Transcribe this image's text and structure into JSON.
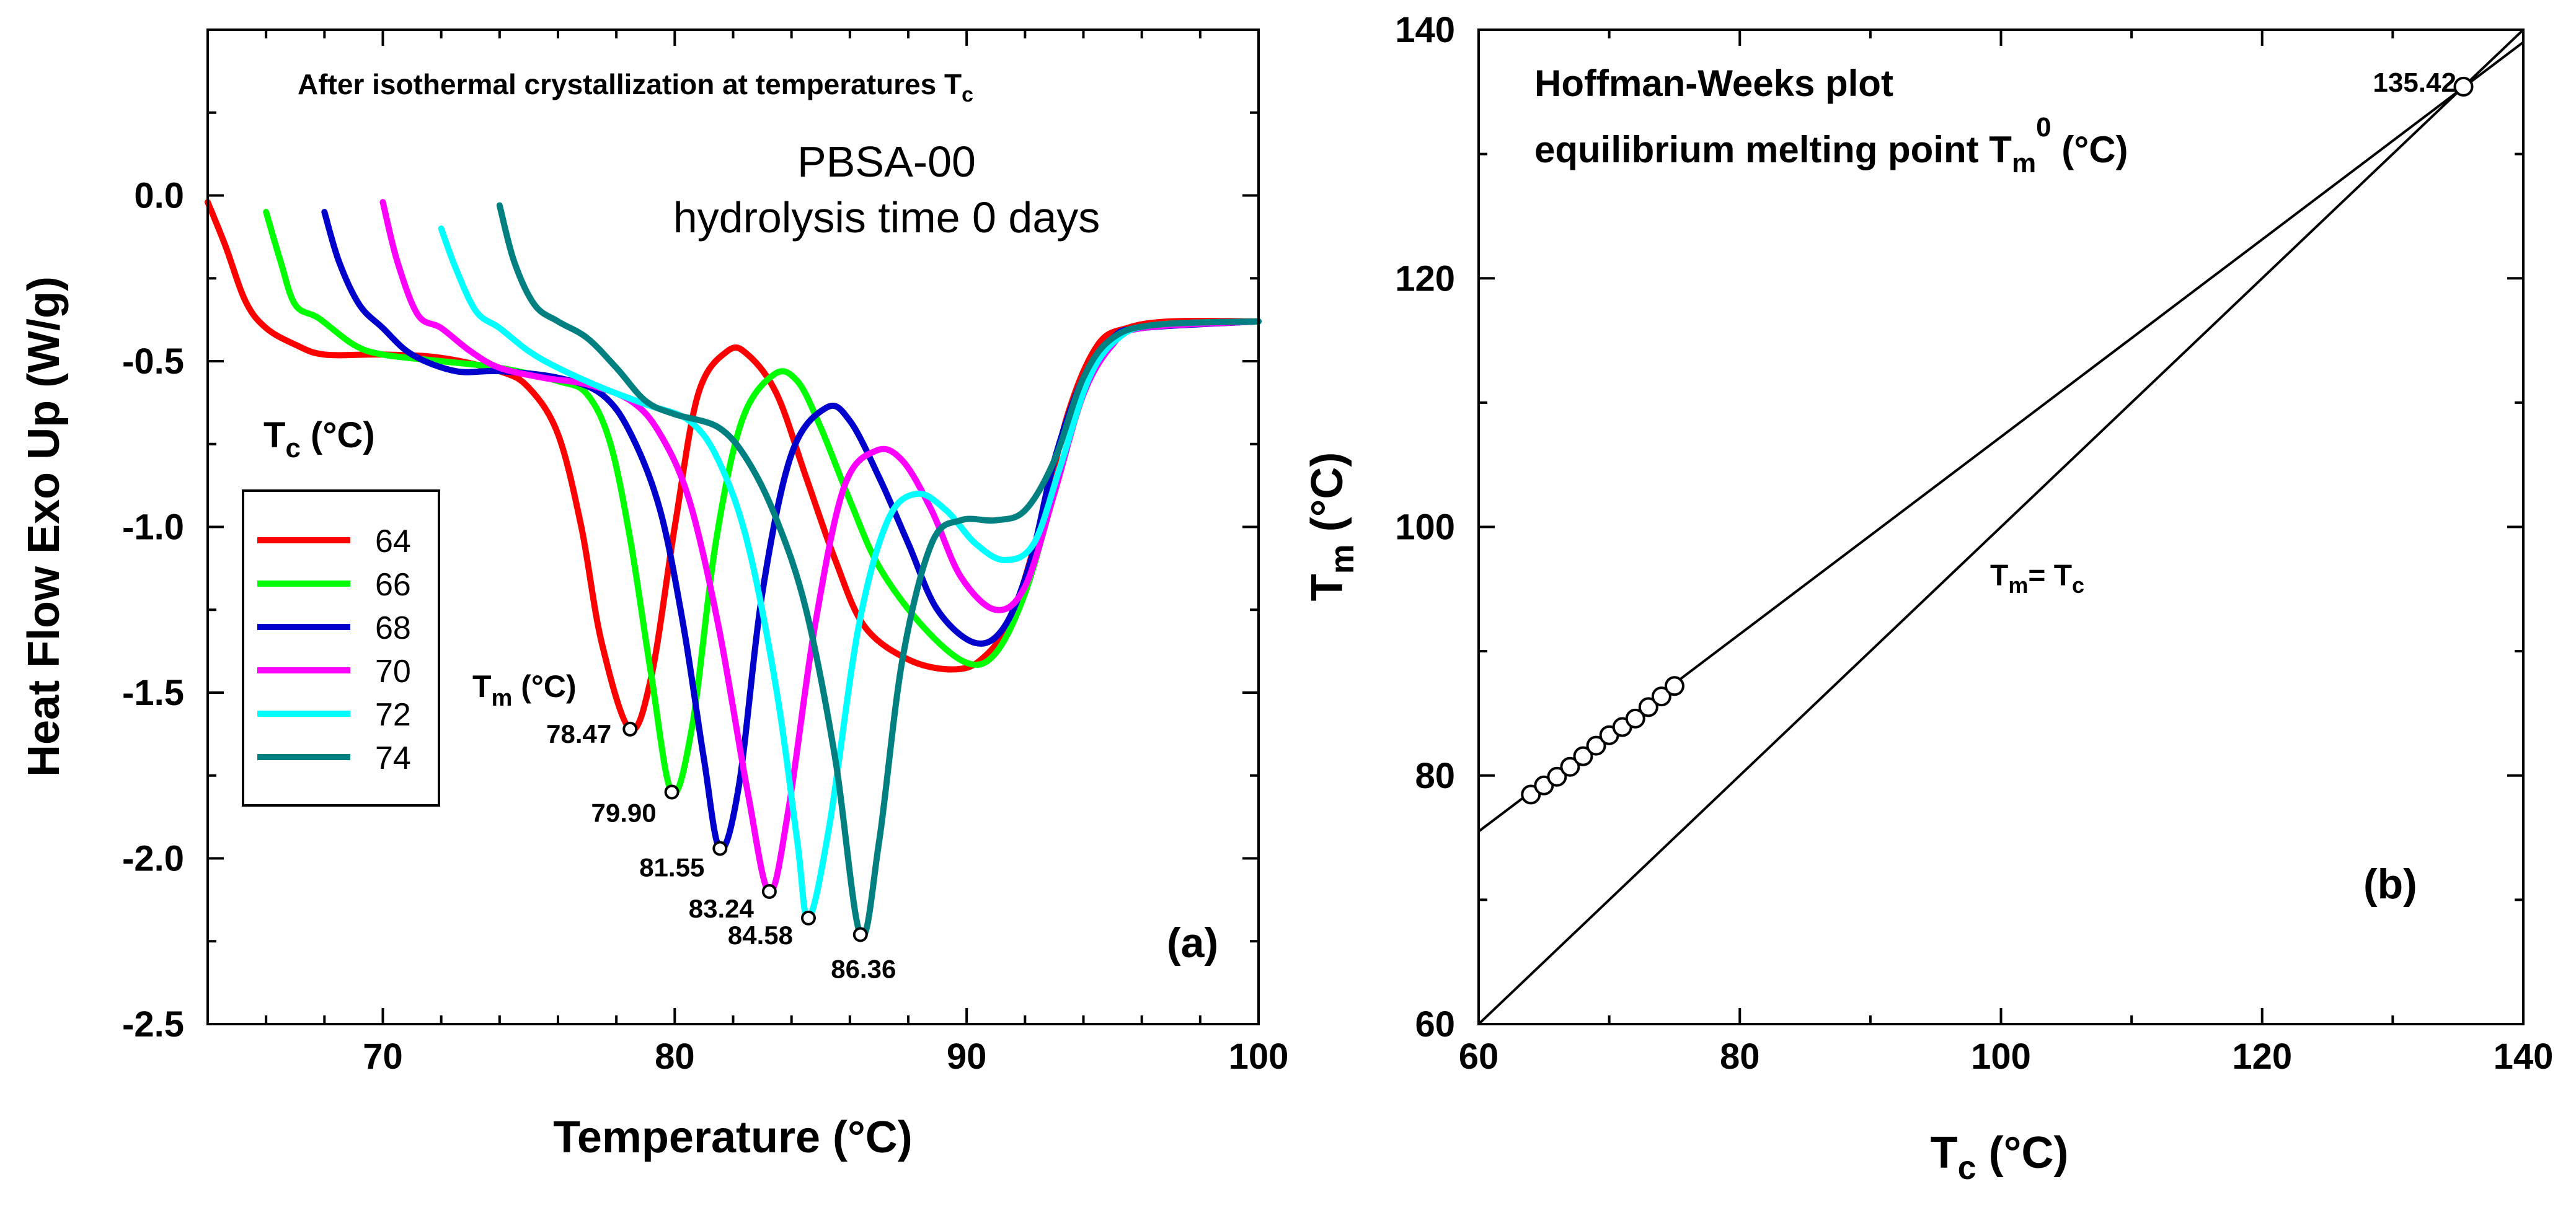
{
  "chart_data": [
    {
      "type": "line",
      "panel_label": "(a)",
      "header": "After isothermal crystallization at temperatures T",
      "header_sub": "c",
      "sample": "PBSA-00",
      "sample_note": "hydrolysis time 0 days",
      "xlabel": "Temperature (°C)",
      "ylabel": "Heat Flow Exo Up (W/g)",
      "xlim": [
        64,
        100
      ],
      "ylim": [
        -2.5,
        0.5
      ],
      "xticks": [
        70,
        80,
        90,
        100
      ],
      "yticks": [
        0.0,
        -0.5,
        -1.0,
        -1.5,
        -2.0,
        -2.5
      ],
      "ytick_labels": [
        "0.0",
        "-0.5",
        "-1.0",
        "-1.5",
        "-2.0",
        "-2.5"
      ],
      "legend_title": "T",
      "legend_title_sub": "c",
      "legend_title_unit": " (°C)",
      "legend_position": "left",
      "tm_label": "T",
      "tm_label_sub": "m",
      "tm_label_unit": " (°C)",
      "series": [
        {
          "name": "64",
          "color": "#ff0000",
          "tc": 64,
          "peak_label": "78.47",
          "points": [
            [
              64,
              -0.02
            ],
            [
              64.6,
              -0.15
            ],
            [
              65.3,
              -0.32
            ],
            [
              66,
              -0.4
            ],
            [
              67,
              -0.45
            ],
            [
              68,
              -0.48
            ],
            [
              70,
              -0.48
            ],
            [
              72,
              -0.49
            ],
            [
              74,
              -0.53
            ],
            [
              75,
              -0.58
            ],
            [
              76,
              -0.72
            ],
            [
              76.8,
              -1.0
            ],
            [
              77.5,
              -1.35
            ],
            [
              78.47,
              -1.61
            ],
            [
              79.2,
              -1.45
            ],
            [
              80,
              -1.0
            ],
            [
              80.8,
              -0.6
            ],
            [
              81.8,
              -0.47
            ],
            [
              82.5,
              -0.48
            ],
            [
              83.5,
              -0.6
            ],
            [
              84.5,
              -0.85
            ],
            [
              85.5,
              -1.1
            ],
            [
              86.5,
              -1.3
            ],
            [
              88,
              -1.4
            ],
            [
              89.5,
              -1.43
            ],
            [
              90.5,
              -1.4
            ],
            [
              91.5,
              -1.28
            ],
            [
              92.5,
              -1.0
            ],
            [
              93.5,
              -0.65
            ],
            [
              94.5,
              -0.45
            ],
            [
              95.5,
              -0.4
            ],
            [
              97,
              -0.38
            ],
            [
              100,
              -0.38
            ]
          ]
        },
        {
          "name": "66",
          "color": "#00ff00",
          "tc": 66,
          "peak_label": "79.90",
          "points": [
            [
              66,
              -0.05
            ],
            [
              66.5,
              -0.2
            ],
            [
              67,
              -0.33
            ],
            [
              67.8,
              -0.37
            ],
            [
              69,
              -0.45
            ],
            [
              70,
              -0.48
            ],
            [
              72,
              -0.5
            ],
            [
              74,
              -0.52
            ],
            [
              76,
              -0.56
            ],
            [
              77,
              -0.6
            ],
            [
              77.8,
              -0.75
            ],
            [
              78.5,
              -1.05
            ],
            [
              79.2,
              -1.45
            ],
            [
              79.9,
              -1.8
            ],
            [
              80.6,
              -1.6
            ],
            [
              81.4,
              -1.05
            ],
            [
              82.3,
              -0.68
            ],
            [
              83.4,
              -0.54
            ],
            [
              84.2,
              -0.56
            ],
            [
              85,
              -0.7
            ],
            [
              86,
              -0.92
            ],
            [
              87,
              -1.12
            ],
            [
              88.5,
              -1.3
            ],
            [
              90,
              -1.41
            ],
            [
              91,
              -1.38
            ],
            [
              92,
              -1.2
            ],
            [
              93,
              -0.9
            ],
            [
              94,
              -0.6
            ],
            [
              95,
              -0.44
            ],
            [
              96,
              -0.4
            ],
            [
              100,
              -0.38
            ]
          ]
        },
        {
          "name": "68",
          "color": "#0000cc",
          "tc": 68,
          "peak_label": "81.55",
          "points": [
            [
              68,
              -0.05
            ],
            [
              68.5,
              -0.2
            ],
            [
              69.2,
              -0.33
            ],
            [
              70,
              -0.4
            ],
            [
              71,
              -0.48
            ],
            [
              72.5,
              -0.53
            ],
            [
              74,
              -0.53
            ],
            [
              76,
              -0.55
            ],
            [
              77.5,
              -0.6
            ],
            [
              78.5,
              -0.72
            ],
            [
              79.5,
              -0.95
            ],
            [
              80.3,
              -1.3
            ],
            [
              81,
              -1.7
            ],
            [
              81.55,
              -1.97
            ],
            [
              82.2,
              -1.78
            ],
            [
              83,
              -1.2
            ],
            [
              84,
              -0.78
            ],
            [
              85.2,
              -0.64
            ],
            [
              86,
              -0.68
            ],
            [
              87,
              -0.85
            ],
            [
              88,
              -1.05
            ],
            [
              89,
              -1.25
            ],
            [
              90.3,
              -1.35
            ],
            [
              91.3,
              -1.3
            ],
            [
              92.2,
              -1.1
            ],
            [
              93,
              -0.8
            ],
            [
              94,
              -0.55
            ],
            [
              95,
              -0.43
            ],
            [
              96,
              -0.4
            ],
            [
              100,
              -0.38
            ]
          ]
        },
        {
          "name": "70",
          "color": "#ff00ff",
          "tc": 70,
          "peak_label": "83.24",
          "points": [
            [
              70,
              -0.02
            ],
            [
              70.5,
              -0.2
            ],
            [
              71.2,
              -0.36
            ],
            [
              72,
              -0.4
            ],
            [
              73,
              -0.47
            ],
            [
              74,
              -0.52
            ],
            [
              75.5,
              -0.55
            ],
            [
              77,
              -0.57
            ],
            [
              78.5,
              -0.62
            ],
            [
              79.5,
              -0.72
            ],
            [
              80.5,
              -0.92
            ],
            [
              81.5,
              -1.3
            ],
            [
              82.5,
              -1.8
            ],
            [
              83.24,
              -2.1
            ],
            [
              83.9,
              -1.85
            ],
            [
              84.8,
              -1.3
            ],
            [
              85.8,
              -0.88
            ],
            [
              86.9,
              -0.77
            ],
            [
              87.8,
              -0.8
            ],
            [
              88.8,
              -0.95
            ],
            [
              89.8,
              -1.15
            ],
            [
              91,
              -1.25
            ],
            [
              92,
              -1.18
            ],
            [
              93,
              -0.9
            ],
            [
              94,
              -0.6
            ],
            [
              95,
              -0.45
            ],
            [
              96,
              -0.4
            ],
            [
              100,
              -0.38
            ]
          ]
        },
        {
          "name": "72",
          "color": "#00ffff",
          "tc": 72,
          "peak_label": "84.58",
          "points": [
            [
              72,
              -0.1
            ],
            [
              72.5,
              -0.22
            ],
            [
              73.2,
              -0.35
            ],
            [
              74,
              -0.4
            ],
            [
              75,
              -0.47
            ],
            [
              76,
              -0.52
            ],
            [
              77.5,
              -0.58
            ],
            [
              79,
              -0.63
            ],
            [
              80.5,
              -0.68
            ],
            [
              81.5,
              -0.8
            ],
            [
              82.5,
              -1.05
            ],
            [
              83.5,
              -1.5
            ],
            [
              84.2,
              -1.95
            ],
            [
              84.58,
              -2.18
            ],
            [
              85.3,
              -1.9
            ],
            [
              86.3,
              -1.3
            ],
            [
              87.3,
              -0.98
            ],
            [
              88.3,
              -0.9
            ],
            [
              89.3,
              -0.95
            ],
            [
              90.3,
              -1.05
            ],
            [
              91.3,
              -1.1
            ],
            [
              92.3,
              -1.05
            ],
            [
              93.2,
              -0.82
            ],
            [
              94.2,
              -0.55
            ],
            [
              95.2,
              -0.43
            ],
            [
              96.5,
              -0.39
            ],
            [
              100,
              -0.38
            ]
          ]
        },
        {
          "name": "74",
          "color": "#008080",
          "tc": 74,
          "peak_label": "86.36",
          "points": [
            [
              74,
              -0.03
            ],
            [
              74.5,
              -0.2
            ],
            [
              75.2,
              -0.33
            ],
            [
              76,
              -0.38
            ],
            [
              77,
              -0.43
            ],
            [
              78,
              -0.52
            ],
            [
              79,
              -0.62
            ],
            [
              80,
              -0.66
            ],
            [
              81.5,
              -0.7
            ],
            [
              82.5,
              -0.8
            ],
            [
              83.5,
              -0.98
            ],
            [
              84.5,
              -1.25
            ],
            [
              85.5,
              -1.7
            ],
            [
              86.36,
              -2.23
            ],
            [
              87,
              -1.95
            ],
            [
              87.8,
              -1.4
            ],
            [
              88.8,
              -1.05
            ],
            [
              89.8,
              -0.98
            ],
            [
              91,
              -0.98
            ],
            [
              92,
              -0.95
            ],
            [
              93,
              -0.8
            ],
            [
              94,
              -0.55
            ],
            [
              95,
              -0.43
            ],
            [
              96.5,
              -0.39
            ],
            [
              100,
              -0.38
            ]
          ]
        }
      ]
    },
    {
      "type": "scatter",
      "panel_label": "(b)",
      "title_line1": "Hoffman-Weeks plot",
      "title_line2": "equilibrium melting point T",
      "title_line2_sub": "m",
      "title_line2_sup": "0",
      "title_line2_unit": " (°C)",
      "xlabel": "T",
      "xlabel_sub": "c",
      "xlabel_unit": " (°C)",
      "ylabel": "T",
      "ylabel_sub": "m",
      "ylabel_unit": " (°C)",
      "xlim": [
        60,
        140
      ],
      "ylim": [
        60,
        140
      ],
      "xticks": [
        60,
        80,
        100,
        120,
        140
      ],
      "yticks": [
        60,
        80,
        100,
        120,
        140
      ],
      "diagonal_label": "T",
      "diagonal_label_sub1": "m",
      "diagonal_label_mid": "= T",
      "diagonal_label_sub2": "c",
      "fit_line": {
        "x": [
          60,
          140
        ],
        "y": [
          75.5,
          139.0
        ]
      },
      "identity_line": {
        "x": [
          60,
          140
        ],
        "y": [
          60,
          140
        ]
      },
      "points": {
        "tc": [
          64,
          65,
          66,
          67,
          68,
          69,
          70,
          71,
          72,
          73,
          74,
          75
        ],
        "tm": [
          78.47,
          79.2,
          79.9,
          80.7,
          81.55,
          82.4,
          83.24,
          83.9,
          84.58,
          85.5,
          86.36,
          87.2
        ]
      },
      "intersection": {
        "tc": 135.42,
        "tm": 135.42,
        "label": "135.42"
      }
    }
  ]
}
